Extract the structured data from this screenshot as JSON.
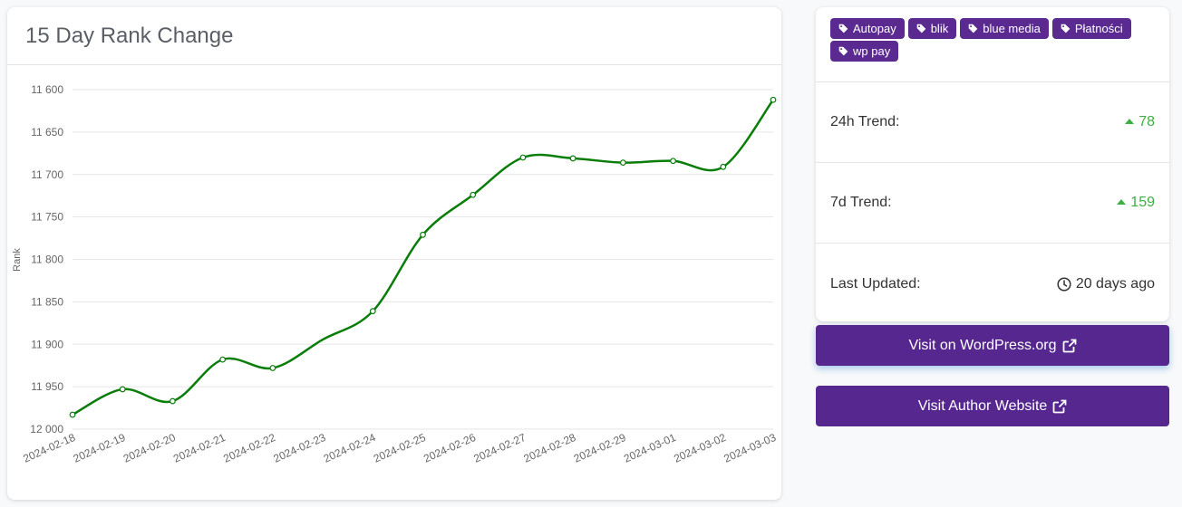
{
  "chart_card": {
    "title": "15 Day Rank Change"
  },
  "chart_data": {
    "type": "line",
    "title": "15 Day Rank Change",
    "ylabel": "Rank",
    "xlabel": "",
    "y_reversed": true,
    "ylim": [
      11600,
      12000
    ],
    "yticks": [
      11600,
      11650,
      11700,
      11750,
      11800,
      11850,
      11900,
      11950,
      12000
    ],
    "ytick_labels": [
      "11 600",
      "11 650",
      "11 700",
      "11 750",
      "11 800",
      "11 850",
      "11 900",
      "11 950",
      "12 000"
    ],
    "x": [
      "2024-02-18",
      "2024-02-19",
      "2024-02-20",
      "2024-02-21",
      "2024-02-22",
      "2024-02-23",
      "2024-02-24",
      "2024-02-25",
      "2024-02-26",
      "2024-02-27",
      "2024-02-28",
      "2024-02-29",
      "2024-03-01",
      "2024-03-02",
      "2024-03-03"
    ],
    "series": [
      {
        "values": [
          11983,
          11953,
          11967,
          11918,
          11928,
          null,
          11861,
          11771,
          11724,
          11680,
          11681,
          11686,
          11684,
          11691,
          11612
        ],
        "color": "#0a7d0a"
      }
    ],
    "grid": true
  },
  "tags": [
    {
      "label": "Autopay"
    },
    {
      "label": "blik"
    },
    {
      "label": "blue media"
    },
    {
      "label": "Płatności"
    },
    {
      "label": "wp pay"
    }
  ],
  "stats": {
    "trend_24h": {
      "label": "24h Trend:",
      "value": "78"
    },
    "trend_7d": {
      "label": "7d Trend:",
      "value": "159"
    },
    "last_updated": {
      "label": "Last Updated:",
      "value": "20 days ago"
    }
  },
  "buttons": {
    "wordpress": "Visit on WordPress.org",
    "author": "Visit Author Website"
  },
  "colors": {
    "accent": "#56288f",
    "trend_up": "#3cb043",
    "line": "#0a7d0a"
  },
  "icons": {
    "tag": "tag-icon",
    "clock": "clock-icon",
    "external": "external-link-icon",
    "caret": "caret-up-icon"
  }
}
